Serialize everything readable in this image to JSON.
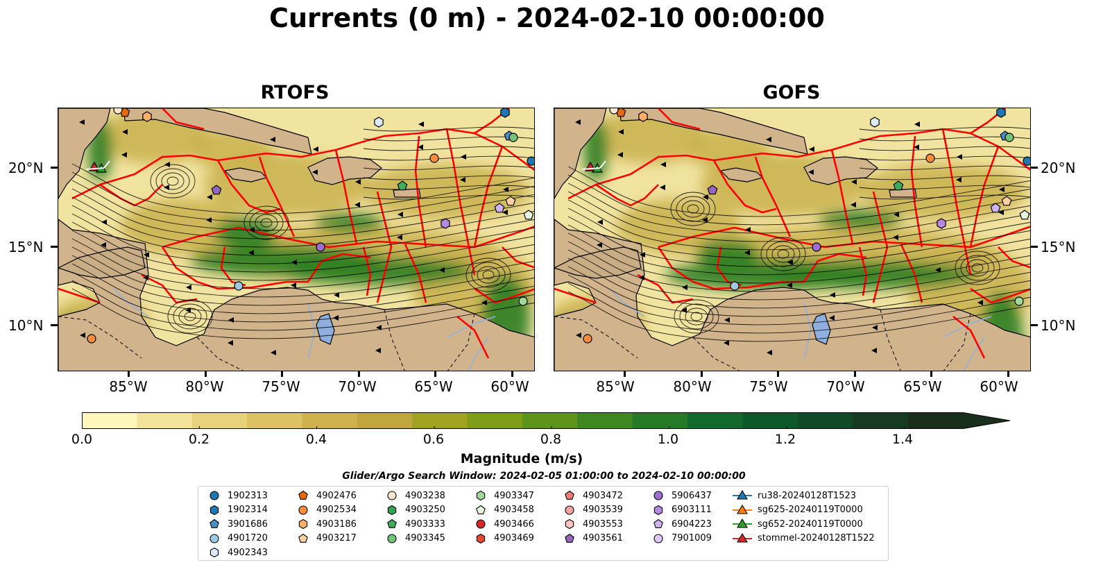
{
  "title": "Currents (0 m) - 2024-02-10 00:00:00",
  "panels": [
    {
      "title": "RTOFS"
    },
    {
      "title": "GOFS"
    }
  ],
  "lat_labels": [
    "20°N",
    "15°N",
    "10°N"
  ],
  "lon_labels": [
    "85°W",
    "80°W",
    "75°W",
    "70°W",
    "65°W",
    "60°W"
  ],
  "colorbar": {
    "label": "Magnitude (m/s)",
    "ticks": [
      "0.0",
      "0.2",
      "0.4",
      "0.6",
      "0.8",
      "1.0",
      "1.2",
      "1.4"
    ],
    "min": 0.0,
    "max": 1.5,
    "extend": "max",
    "colors": [
      "#fff7bc",
      "#f4e49a",
      "#e8d27c",
      "#dcc262",
      "#cfb24d",
      "#c0a63d",
      "#9fa31f",
      "#7f9d16",
      "#5e9419",
      "#3f871f",
      "#257a27",
      "#11692c",
      "#0c5a2a",
      "#114a26",
      "#153c22",
      "#192f1b"
    ]
  },
  "search_window": "Glider/Argo Search Window: 2024-02-05 01:00:00 to 2024-02-10 00:00:00",
  "map_colors": {
    "land": "#d2b48c",
    "lake": "#8fb0df",
    "ocean_low": "#f1e3a0",
    "ocean_mid": "#c9b04d",
    "ocean_high": "#2f7e24",
    "eez": "#ff0000"
  },
  "legend": [
    {
      "label": "1902313",
      "marker": "circle",
      "color": "#1f77b4"
    },
    {
      "label": "1902314",
      "marker": "hexagon",
      "color": "#1f77b4"
    },
    {
      "label": "3901686",
      "marker": "pentagon",
      "color": "#4a90c8"
    },
    {
      "label": "4901720",
      "marker": "circle",
      "color": "#9ecae1"
    },
    {
      "label": "4902343",
      "marker": "hexagon",
      "color": "#deebf7"
    },
    {
      "label": "4902476",
      "marker": "pentagon",
      "color": "#e6690c"
    },
    {
      "label": "4902534",
      "marker": "circle",
      "color": "#fd8d3c"
    },
    {
      "label": "4903186",
      "marker": "hexagon",
      "color": "#fdae6b"
    },
    {
      "label": "4903217",
      "marker": "pentagon",
      "color": "#fdd0a2"
    },
    {
      "label": "4903238",
      "marker": "circle",
      "color": "#fee6ce"
    },
    {
      "label": "4903250",
      "marker": "hexagon",
      "color": "#31a354"
    },
    {
      "label": "4903333",
      "marker": "pentagon",
      "color": "#41ab5d"
    },
    {
      "label": "4903345",
      "marker": "circle",
      "color": "#74c476"
    },
    {
      "label": "4903347",
      "marker": "hexagon",
      "color": "#a1d99b"
    },
    {
      "label": "4903458",
      "marker": "pentagon",
      "color": "#e5f5e0"
    },
    {
      "label": "4903466",
      "marker": "circle",
      "color": "#d62728"
    },
    {
      "label": "4903469",
      "marker": "hexagon",
      "color": "#e34a33"
    },
    {
      "label": "4903472",
      "marker": "pentagon",
      "color": "#f07b7b"
    },
    {
      "label": "4903539",
      "marker": "circle",
      "color": "#f5a3a3"
    },
    {
      "label": "4903553",
      "marker": "hexagon",
      "color": "#fcc5c0"
    },
    {
      "label": "4903561",
      "marker": "pentagon",
      "color": "#9467bd"
    },
    {
      "label": "5906437",
      "marker": "circle",
      "color": "#9e6fd0"
    },
    {
      "label": "6903111",
      "marker": "hexagon",
      "color": "#b58ae0"
    },
    {
      "label": "6904223",
      "marker": "pentagon",
      "color": "#cfb4ef"
    },
    {
      "label": "7901009",
      "marker": "circle",
      "color": "#e3c8f7"
    },
    {
      "label": "ru38-20240128T1523",
      "marker": "triangle-line",
      "color": "#1f77b4"
    },
    {
      "label": "sg625-20240119T0000",
      "marker": "triangle-line",
      "color": "#ff7f0e"
    },
    {
      "label": "sg652-20240119T0000",
      "marker": "triangle-line",
      "color": "#2ca02c"
    },
    {
      "label": "stommel-20240128T1522",
      "marker": "triangle-line",
      "color": "#d62728"
    }
  ]
}
